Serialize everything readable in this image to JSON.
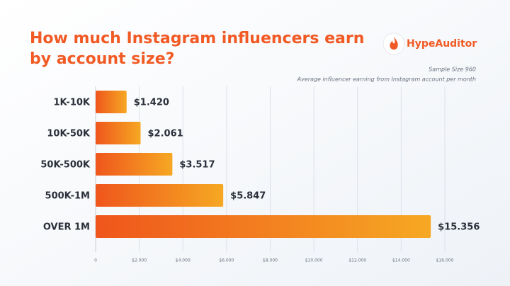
{
  "chart_data": {
    "type": "hbar",
    "title": "How much Instagram influencers earn",
    "title_line2": "by account size?",
    "brand": "HypeAuditor",
    "sample_note": "Sample Size 960",
    "subtitle": "Average influencer earning from Instagram account per month",
    "categories": [
      "1K-10K",
      "10K-50K",
      "50K-500K",
      "500K-1M",
      "OVER 1M"
    ],
    "values": [
      1420,
      2061,
      3517,
      5847,
      15356
    ],
    "value_labels": [
      "$1.420",
      "$2.061",
      "$3.517",
      "$5.847",
      "$15.356"
    ],
    "color": "#ef561c",
    "color_end": "#f6a823",
    "xlim": [
      0,
      16000
    ],
    "xticks": [
      0,
      {
        "value": 2000,
        "label": "$2.000"
      },
      {
        "value": 4000,
        "label": "$4.000"
      },
      {
        "value": 6000,
        "label": "$6.000"
      },
      {
        "value": 8000,
        "label": "$8.000"
      },
      {
        "value": 10000,
        "label": "$10.000"
      },
      {
        "value": 12000,
        "label": "$12.000"
      },
      {
        "value": 14000,
        "label": "$14.000"
      },
      {
        "value": 16000,
        "label": "$16.000"
      }
    ],
    "grid": true
  }
}
